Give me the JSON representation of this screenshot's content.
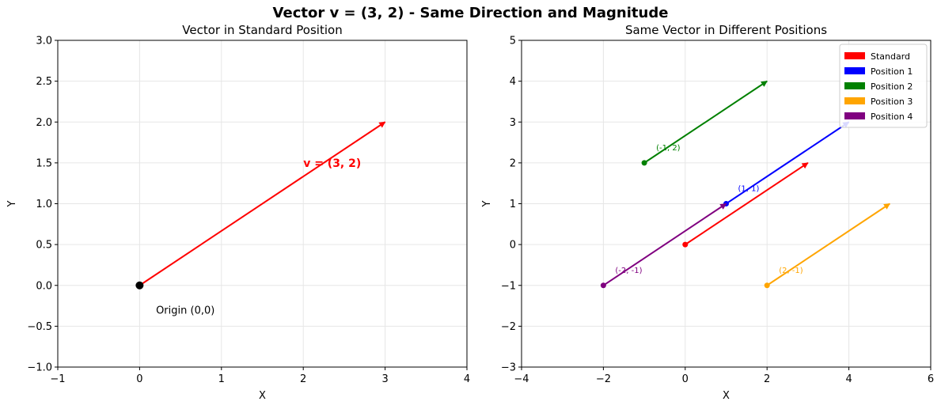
{
  "suptitle": "Vector v = (3, 2) - Same Direction and Magnitude",
  "chart_data": [
    {
      "type": "vector",
      "title": "Vector in Standard Position",
      "xlabel": "X",
      "ylabel": "Y",
      "xlim": [
        -1,
        4
      ],
      "ylim": [
        -1.0,
        3.0
      ],
      "xticks": [
        -1,
        0,
        1,
        2,
        3,
        4
      ],
      "yticks": [
        -1.0,
        -0.5,
        0.0,
        0.5,
        1.0,
        1.5,
        2.0,
        2.5,
        3.0
      ],
      "xtick_labels": [
        "−1",
        "0",
        "1",
        "2",
        "3",
        "4"
      ],
      "ytick_labels": [
        "−1.0",
        "−0.5",
        "0.0",
        "0.5",
        "1.0",
        "1.5",
        "2.0",
        "2.5",
        "3.0"
      ],
      "grid": true,
      "vectors": [
        {
          "start": [
            0,
            0
          ],
          "vector": [
            3,
            2
          ],
          "color": "#ff0000"
        }
      ],
      "points": [
        {
          "x": 0,
          "y": 0,
          "color": "#000000"
        }
      ],
      "annotations": [
        {
          "text": "v = (3, 2)",
          "x": 2,
          "y": 1.5,
          "color": "#ff0000",
          "bold": true,
          "size": 14
        },
        {
          "text": "Origin (0,0)",
          "x": 0.2,
          "y": -0.3,
          "color": "#000000",
          "bold": false,
          "size": 13
        }
      ]
    },
    {
      "type": "vector",
      "title": "Same Vector in Different Positions",
      "xlabel": "X",
      "ylabel": "Y",
      "xlim": [
        -4,
        6
      ],
      "ylim": [
        -3,
        5
      ],
      "xticks": [
        -4,
        -2,
        0,
        2,
        4,
        6
      ],
      "yticks": [
        -3,
        -2,
        -1,
        0,
        1,
        2,
        3,
        4,
        5
      ],
      "xtick_labels": [
        "−4",
        "−2",
        "0",
        "2",
        "4",
        "6"
      ],
      "ytick_labels": [
        "−3",
        "−2",
        "−1",
        "0",
        "1",
        "2",
        "3",
        "4",
        "5"
      ],
      "grid": true,
      "legend_position": "top-right",
      "vectors": [
        {
          "name": "Standard",
          "start": [
            0,
            0
          ],
          "vector": [
            3,
            2
          ],
          "color": "#ff0000",
          "label": ""
        },
        {
          "name": "Position 1",
          "start": [
            1,
            1
          ],
          "vector": [
            3,
            2
          ],
          "color": "#0000ff",
          "label": "(1, 1)"
        },
        {
          "name": "Position 2",
          "start": [
            -1,
            2
          ],
          "vector": [
            3,
            2
          ],
          "color": "#008000",
          "label": "(-1, 2)"
        },
        {
          "name": "Position 3",
          "start": [
            2,
            -1
          ],
          "vector": [
            3,
            2
          ],
          "color": "#ffa500",
          "label": "(2, -1)"
        },
        {
          "name": "Position 4",
          "start": [
            -2,
            -1
          ],
          "vector": [
            3,
            2
          ],
          "color": "#800080",
          "label": "(-2, -1)"
        }
      ]
    }
  ]
}
